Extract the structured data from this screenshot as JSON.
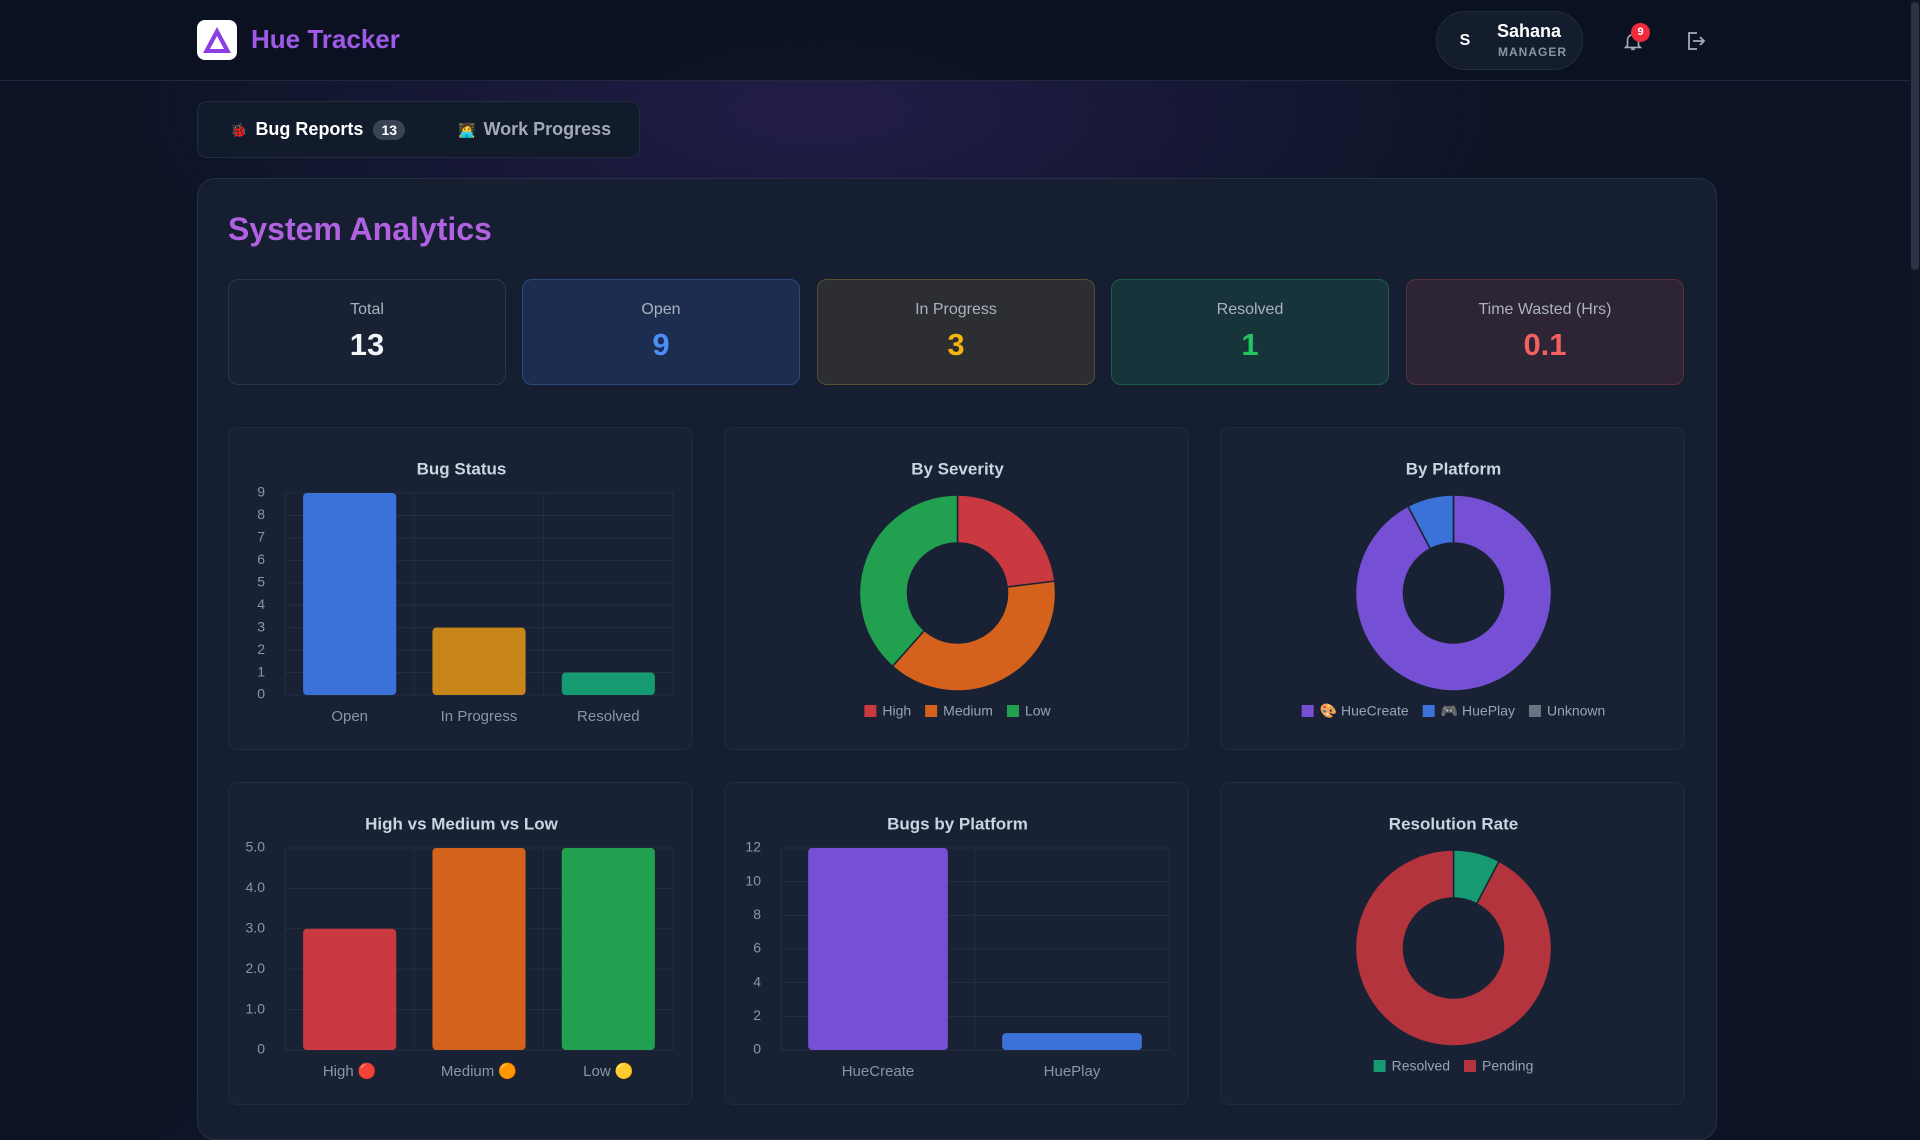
{
  "header": {
    "app_name": "Hue Tracker",
    "user": {
      "initial": "S",
      "name": "Sahana",
      "role": "MANAGER"
    },
    "notifications": 9
  },
  "tabs": [
    {
      "icon": "🐞",
      "label": "Bug Reports",
      "count": 13
    },
    {
      "icon": "🧑‍💻",
      "label": "Work Progress"
    }
  ],
  "analytics": {
    "title": "System Analytics",
    "stats": [
      {
        "label": "Total",
        "value": 13
      },
      {
        "label": "Open",
        "value": 9
      },
      {
        "label": "In Progress",
        "value": 3
      },
      {
        "label": "Resolved",
        "value": 1
      },
      {
        "label": "Time Wasted (Hrs)",
        "value": 0.1
      }
    ]
  },
  "chart_data": [
    {
      "type": "bar",
      "title": "Bug Status",
      "categories": [
        "Open",
        "In Progress",
        "Resolved"
      ],
      "values": [
        9,
        3,
        1
      ],
      "colors": [
        "#3a72d8",
        "#c8861a",
        "#169a72"
      ],
      "ylim": [
        0,
        9
      ],
      "yticks": [
        0,
        1,
        2,
        3,
        4,
        5,
        6,
        7,
        8,
        9
      ],
      "grid": true
    },
    {
      "type": "donut",
      "title": "By Severity",
      "categories": [
        "High",
        "Medium",
        "Low"
      ],
      "values": [
        3,
        5,
        5
      ],
      "colors": [
        "#c9393f",
        "#d4621c",
        "#21a050"
      ]
    },
    {
      "type": "donut",
      "title": "By Platform",
      "categories": [
        "🎨 HueCreate",
        "🎮 HuePlay",
        "Unknown"
      ],
      "values": [
        12,
        1,
        0
      ],
      "colors": [
        "#7650d4",
        "#3a72d8",
        "#6b7280"
      ]
    },
    {
      "type": "bar",
      "title": "High vs Medium vs Low",
      "categories": [
        "High 🔴",
        "Medium 🟠",
        "Low 🟡"
      ],
      "values": [
        3,
        5,
        5
      ],
      "colors": [
        "#c9393f",
        "#d4621c",
        "#21a050"
      ],
      "ylim": [
        0,
        5
      ],
      "yticks": [
        0,
        {
          "value": 1,
          "label": "1.0"
        },
        {
          "value": 2,
          "label": "2.0"
        },
        {
          "value": 3,
          "label": "3.0"
        },
        {
          "value": 4,
          "label": "4.0"
        },
        {
          "value": 5,
          "label": "5.0"
        }
      ],
      "grid": true
    },
    {
      "type": "bar",
      "title": "Bugs by Platform",
      "categories": [
        "HueCreate",
        "HuePlay"
      ],
      "values": [
        12,
        1
      ],
      "colors": [
        "#7650d4",
        "#3a72d8"
      ],
      "ylim": [
        0,
        12
      ],
      "yticks": [
        0,
        2,
        4,
        6,
        8,
        10,
        12
      ],
      "grid": true
    },
    {
      "type": "donut",
      "title": "Resolution Rate",
      "categories": [
        "Resolved",
        "Pending"
      ],
      "values": [
        1,
        12
      ],
      "colors": [
        "#169a72",
        "#b3343c"
      ]
    }
  ]
}
